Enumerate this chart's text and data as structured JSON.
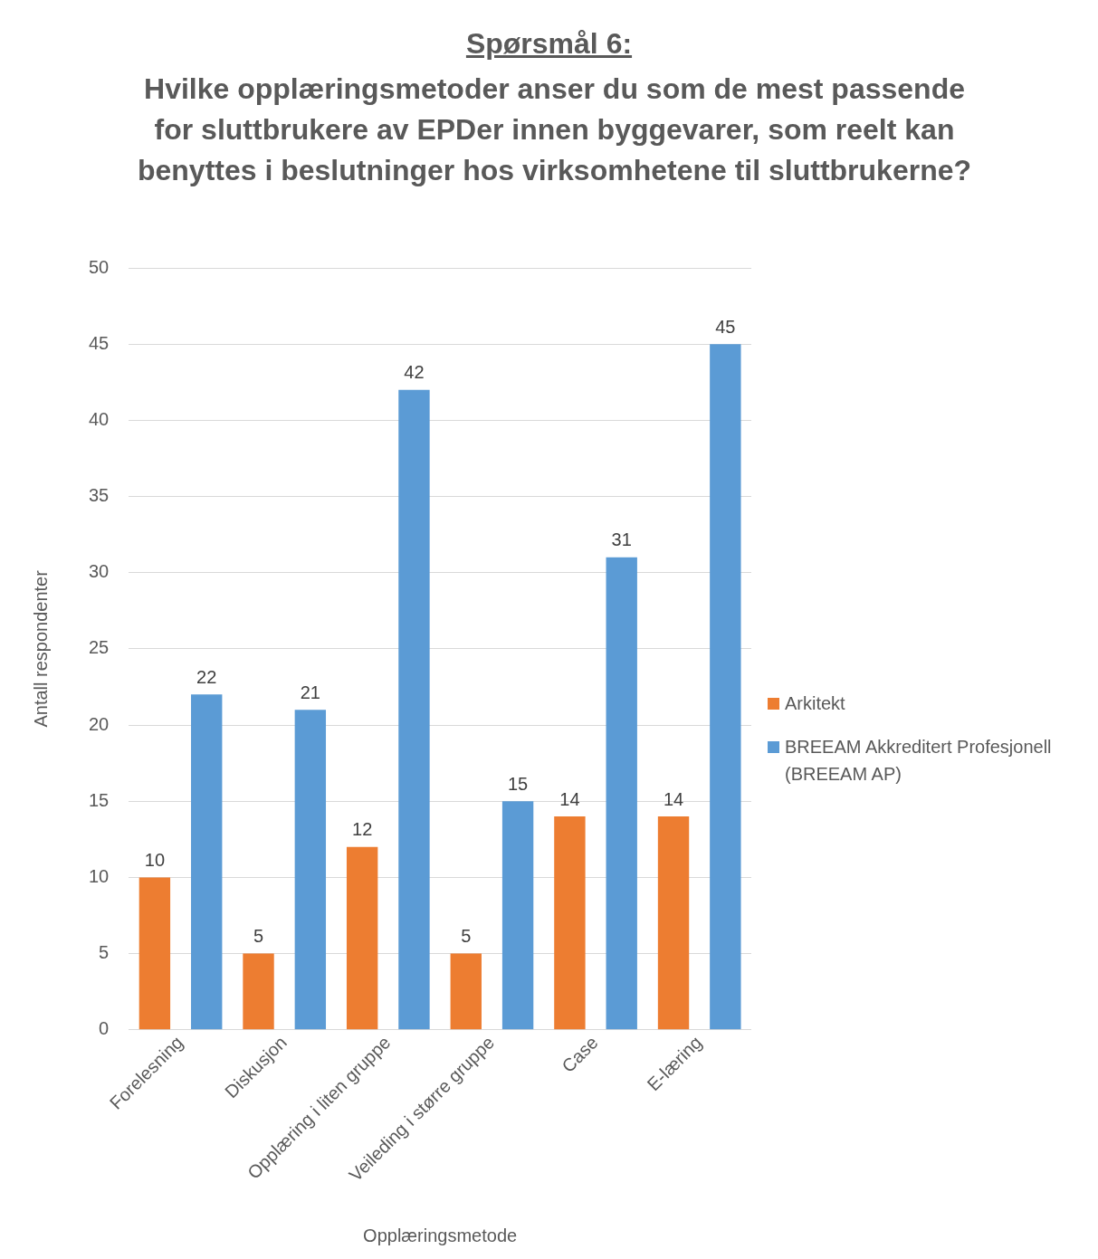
{
  "chart_data": {
    "type": "bar",
    "title": "Spørsmål 6:",
    "subtitle": "Hvilke opplæringsmetoder anser du som de mest passende for sluttbrukere av EPDer innen byggevarer, som reelt kan benyttes i beslutninger hos virksomhetene til sluttbrukerne?",
    "xlabel": "Opplæringsmetode",
    "ylabel": "Antall respondenter",
    "categories": [
      "Forelesning",
      "Diskusjon",
      "Opplæring i liten gruppe",
      "Veileding i større gruppe",
      "Case",
      "E-læring"
    ],
    "series": [
      {
        "name": "Arkitekt",
        "color": "#ed7d31",
        "values": [
          10,
          5,
          12,
          5,
          14,
          14
        ]
      },
      {
        "name": "BREEAM Akkreditert Profesjonell (BREEAM AP)",
        "color": "#5b9bd5",
        "values": [
          22,
          21,
          42,
          15,
          31,
          45
        ]
      }
    ],
    "ylim": [
      0,
      50
    ],
    "yticks": [
      0,
      5,
      10,
      15,
      20,
      25,
      30,
      35,
      40,
      45,
      50
    ],
    "grid": "y",
    "legend": "right",
    "data_labels": true
  }
}
